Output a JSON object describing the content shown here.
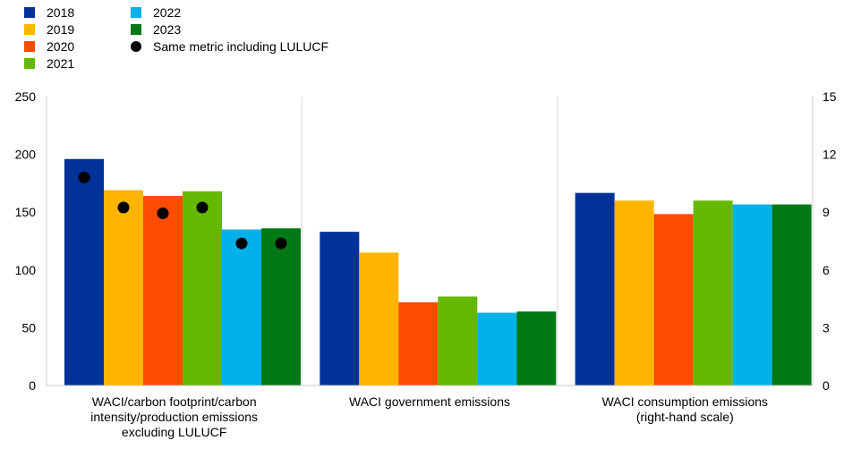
{
  "chart_data": {
    "type": "bar",
    "categories": [
      [
        "WACI/carbon footprint/carbon",
        "intensity/production emissions",
        "excluding LULUCF"
      ],
      [
        "WACI government emissions"
      ],
      [
        "WACI consumption emissions",
        "(right-hand scale)"
      ]
    ],
    "axes": {
      "left": {
        "ylim": [
          0,
          250
        ],
        "ticks": [
          "0",
          "50",
          "100",
          "150",
          "200",
          "250"
        ],
        "applies_to": [
          0,
          1
        ]
      },
      "right": {
        "ylim": [
          0,
          15
        ],
        "ticks": [
          "0",
          "3",
          "6",
          "9",
          "12",
          "15"
        ],
        "applies_to": [
          2
        ]
      }
    },
    "grid": false,
    "legend_position": "top-left",
    "series": [
      {
        "name": "2018",
        "color": "#003299",
        "values": [
          196,
          133,
          10.0
        ]
      },
      {
        "name": "2019",
        "color": "#FFB400",
        "values": [
          169,
          115,
          9.6
        ]
      },
      {
        "name": "2020",
        "color": "#FF4B00",
        "values": [
          164,
          72,
          8.9
        ]
      },
      {
        "name": "2021",
        "color": "#65B800",
        "values": [
          168,
          77,
          9.6
        ]
      },
      {
        "name": "2022",
        "color": "#00B1EA",
        "values": [
          135,
          63,
          9.4
        ]
      },
      {
        "name": "2023",
        "color": "#007816",
        "values": [
          136,
          64,
          9.4
        ]
      }
    ],
    "markers": {
      "name": "Same metric including LULUCF",
      "color": "#000000",
      "category": 0,
      "values": [
        180,
        154,
        149,
        154,
        123,
        123
      ]
    }
  }
}
